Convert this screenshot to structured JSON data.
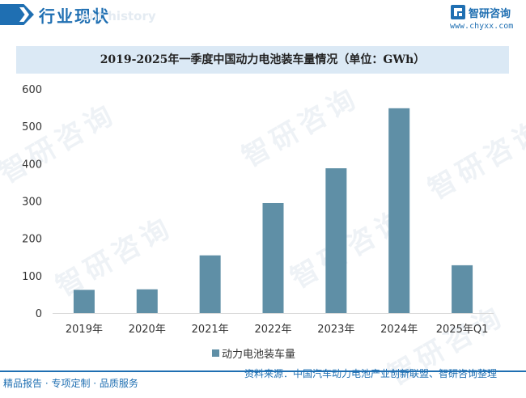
{
  "header": {
    "title": "行业现状",
    "subtitle": "ent history"
  },
  "brand": {
    "name": "智研咨询",
    "url": "www.chyxx.com",
    "logo_icon": "brand-logo-icon",
    "color": "#1f6fb2"
  },
  "watermark_text": "智研咨询",
  "chart_data": {
    "type": "bar",
    "title": "2019-2025年一季度中国动力电池装车量情况（单位：GWh）",
    "categories": [
      "2019年",
      "2020年",
      "2021年",
      "2022年",
      "2023年",
      "2024年",
      "2025年Q1"
    ],
    "series": [
      {
        "name": "动力电池装车量",
        "values": [
          62.2,
          63.6,
          154.5,
          294.6,
          387.7,
          548.4,
          128.0
        ],
        "color": "#5f8fa6"
      }
    ],
    "yticks": [
      "0",
      "100",
      "200",
      "300",
      "400",
      "500",
      "600"
    ],
    "ylim": [
      0,
      600
    ],
    "grid": false,
    "legend": "bottom",
    "xlabel": "",
    "ylabel": ""
  },
  "legend": {
    "label": "动力电池装车量"
  },
  "footer": {
    "left": "精品报告 · 专项定制 · 品质服务",
    "right": "资料来源：中国汽车动力电池产业创新联盟、智研咨询整理"
  }
}
